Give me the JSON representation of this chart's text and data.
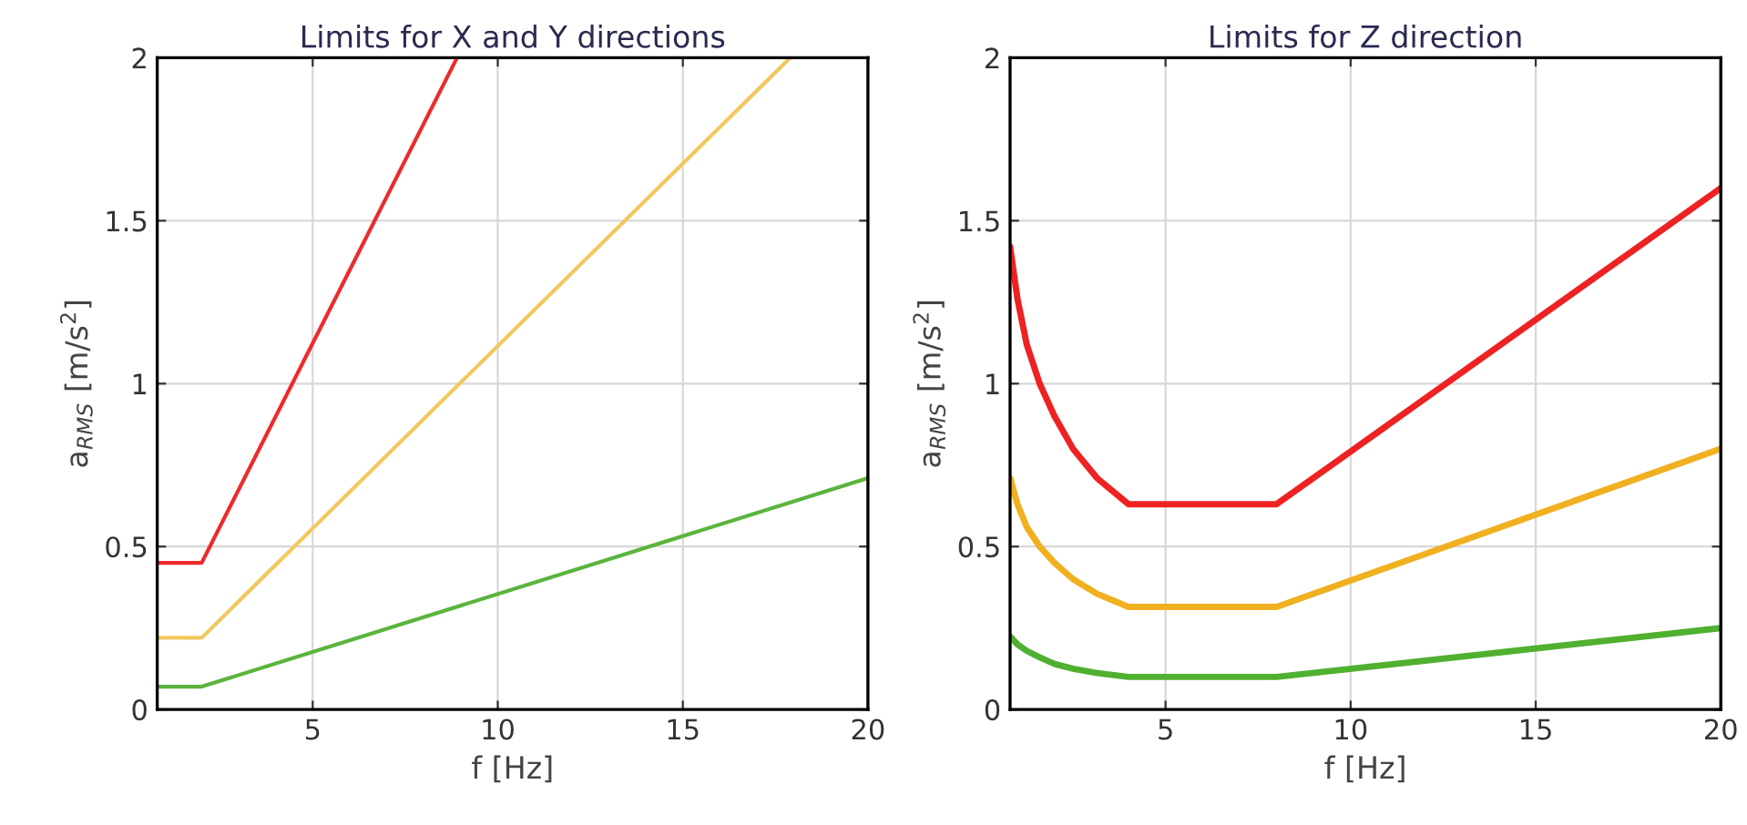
{
  "chart_data": [
    {
      "type": "line",
      "title": "Limits for X and Y directions",
      "xlabel": "f [Hz]",
      "ylabel": "a$_{RMS}$ [m/s$^{2}$]",
      "xlim": [
        0.8,
        20
      ],
      "ylim": [
        0,
        2
      ],
      "xticks": [
        5,
        10,
        15,
        20
      ],
      "yticks": [
        0,
        0.5,
        1,
        1.5,
        2
      ],
      "grid": true,
      "series": [
        {
          "color": "#ee2a2a",
          "x": [
            0.8,
            2,
            8.9
          ],
          "values": [
            0.45,
            0.45,
            2.0
          ]
        },
        {
          "color": "#f2c860",
          "x": [
            0.8,
            2,
            17.9
          ],
          "values": [
            0.22,
            0.22,
            2.0
          ]
        },
        {
          "color": "#5ab43c",
          "x": [
            0.8,
            2,
            20
          ],
          "values": [
            0.07,
            0.07,
            0.71
          ]
        }
      ]
    },
    {
      "type": "line",
      "title": "Limits for Z direction",
      "xlabel": "f [Hz]",
      "ylabel": "a$_{RMS}$ [m/s$^{2}$]",
      "xlim": [
        0.8,
        20
      ],
      "ylim": [
        0,
        2
      ],
      "xticks": [
        5,
        10,
        15,
        20
      ],
      "yticks": [
        0,
        0.5,
        1,
        1.5,
        2
      ],
      "grid": true,
      "series": [
        {
          "color": "#ee2222",
          "x": [
            0.8,
            1,
            1.25,
            1.6,
            2,
            2.5,
            3.15,
            4,
            8,
            20
          ],
          "values": [
            1.42,
            1.26,
            1.12,
            1.0,
            0.9,
            0.8,
            0.71,
            0.63,
            0.63,
            1.6
          ]
        },
        {
          "color": "#f0b020",
          "x": [
            0.8,
            1,
            1.25,
            1.6,
            2,
            2.5,
            3.15,
            4,
            8,
            20
          ],
          "values": [
            0.71,
            0.63,
            0.56,
            0.5,
            0.45,
            0.4,
            0.355,
            0.315,
            0.315,
            0.8
          ]
        },
        {
          "color": "#50b030",
          "x": [
            0.8,
            1,
            1.25,
            1.6,
            2,
            2.5,
            3.15,
            4,
            8,
            20
          ],
          "values": [
            0.224,
            0.2,
            0.18,
            0.16,
            0.14,
            0.125,
            0.112,
            0.1,
            0.1,
            0.25
          ]
        }
      ]
    }
  ]
}
